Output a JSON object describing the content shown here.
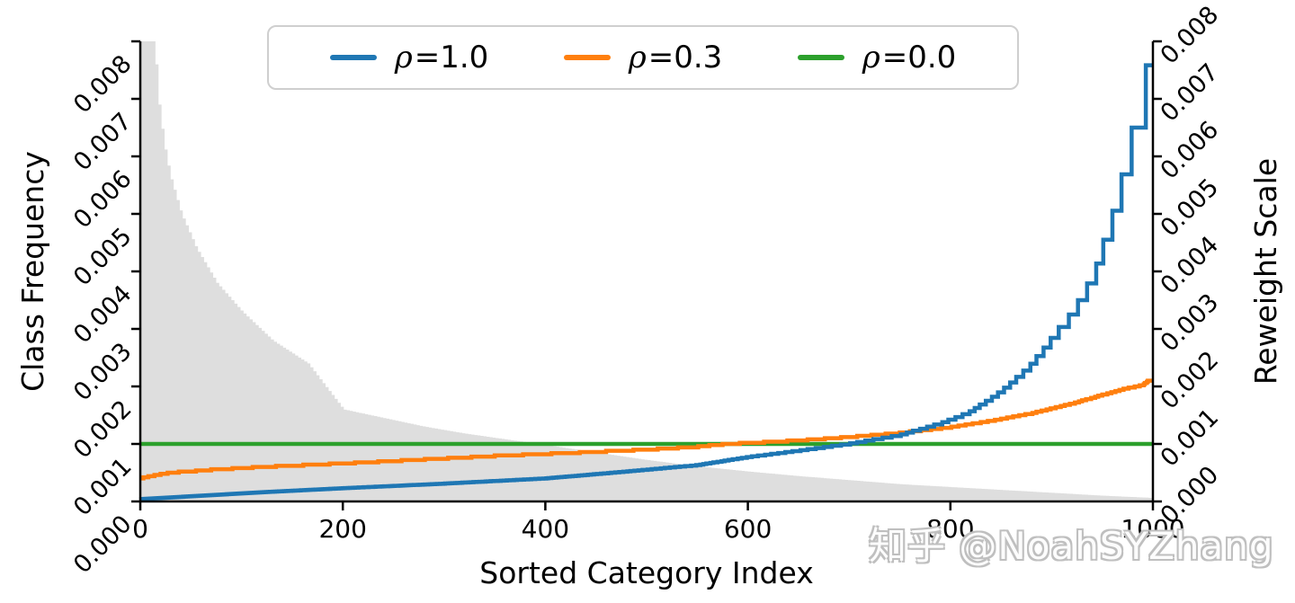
{
  "watermark": {
    "text": "知乎 @NoahSYZhang"
  },
  "chart_data": {
    "type": "line",
    "title": "",
    "xlabel": "Sorted Category Index",
    "ylabel_left": "Class Frequency",
    "ylabel_right": "Reweight Scale",
    "xlim": [
      0,
      1000
    ],
    "ylim": [
      0,
      0.008
    ],
    "xticks": [
      "0",
      "200",
      "400",
      "600",
      "800",
      "1000"
    ],
    "yticks_left": [
      "0.000",
      "0.001",
      "0.002",
      "0.003",
      "0.004",
      "0.005",
      "0.006",
      "0.007",
      "0.008"
    ],
    "yticks_right": [
      "0.000",
      "0.001",
      "0.002",
      "0.003",
      "0.004",
      "0.005",
      "0.006",
      "0.007",
      "0.008"
    ],
    "grid": false,
    "legend_position": "top-center",
    "axis_color": "#000000",
    "series": [
      {
        "name": "class-frequency-area",
        "label": "",
        "type": "area",
        "color": "#dedede",
        "points": [
          [
            0,
            0.008
          ],
          [
            14,
            0.008
          ],
          [
            16,
            0.0072
          ],
          [
            20,
            0.0066
          ],
          [
            25,
            0.006
          ],
          [
            30,
            0.0056
          ],
          [
            40,
            0.005
          ],
          [
            55,
            0.0044
          ],
          [
            75,
            0.0038
          ],
          [
            100,
            0.0033
          ],
          [
            130,
            0.0028
          ],
          [
            165,
            0.0024
          ],
          [
            200,
            0.0016
          ],
          [
            240,
            0.00145
          ],
          [
            280,
            0.0013
          ],
          [
            320,
            0.00118
          ],
          [
            360,
            0.00108
          ],
          [
            400,
            0.00098
          ],
          [
            450,
            0.00085
          ],
          [
            500,
            0.00072
          ],
          [
            550,
            0.00061
          ],
          [
            600,
            0.00052
          ],
          [
            650,
            0.00044
          ],
          [
            700,
            0.00037
          ],
          [
            750,
            0.0003
          ],
          [
            800,
            0.00025
          ],
          [
            850,
            0.0002
          ],
          [
            900,
            0.00015
          ],
          [
            950,
            0.0001
          ],
          [
            1000,
            6e-05
          ]
        ]
      },
      {
        "name": "rho-1.0",
        "label": "ρ=1.0",
        "type": "line",
        "color": "#1f77b4",
        "staircase_c": 0.0455,
        "points": [
          [
            0,
            4e-05
          ],
          [
            60,
            0.0001
          ],
          [
            120,
            0.00016
          ],
          [
            200,
            0.00023
          ],
          [
            300,
            0.00031
          ],
          [
            400,
            0.0004
          ],
          [
            480,
            0.00052
          ],
          [
            550,
            0.00063
          ],
          [
            600,
            0.00077
          ],
          [
            650,
            0.00088
          ],
          [
            700,
            0.001
          ],
          [
            750,
            0.00115
          ],
          [
            790,
            0.00135
          ],
          [
            820,
            0.00155
          ],
          [
            850,
            0.0019
          ],
          [
            880,
            0.00235
          ],
          [
            900,
            0.0028
          ],
          [
            915,
            0.0031
          ],
          [
            930,
            0.0035
          ],
          [
            942,
            0.0039
          ],
          [
            952,
            0.0044
          ],
          [
            960,
            0.0048
          ],
          [
            968,
            0.0053
          ],
          [
            975,
            0.0058
          ],
          [
            982,
            0.0063
          ],
          [
            990,
            0.0066
          ],
          [
            992,
            0.0069
          ],
          [
            994,
            0.0076
          ],
          [
            1000,
            0.0076
          ]
        ]
      },
      {
        "name": "rho-0.3",
        "label": "ρ=0.3",
        "type": "line",
        "color": "#ff7f0e",
        "quantize": 2e-05,
        "points": [
          [
            0,
            0.0004
          ],
          [
            10,
            0.00044
          ],
          [
            30,
            0.0005
          ],
          [
            70,
            0.00055
          ],
          [
            120,
            0.0006
          ],
          [
            200,
            0.00066
          ],
          [
            280,
            0.00073
          ],
          [
            350,
            0.00079
          ],
          [
            420,
            0.00084
          ],
          [
            500,
            0.0009
          ],
          [
            550,
            0.00095
          ],
          [
            580,
            0.001
          ],
          [
            650,
            0.00106
          ],
          [
            700,
            0.00112
          ],
          [
            750,
            0.00119
          ],
          [
            800,
            0.00129
          ],
          [
            840,
            0.0014
          ],
          [
            880,
            0.00153
          ],
          [
            920,
            0.0017
          ],
          [
            950,
            0.00185
          ],
          [
            975,
            0.00197
          ],
          [
            990,
            0.00202
          ],
          [
            995,
            0.0021
          ],
          [
            1000,
            0.0021
          ]
        ]
      },
      {
        "name": "rho-0.0",
        "label": "ρ=0.0",
        "type": "line",
        "color": "#2ca02c",
        "points": [
          [
            0,
            0.001
          ],
          [
            1000,
            0.001
          ]
        ]
      }
    ]
  }
}
